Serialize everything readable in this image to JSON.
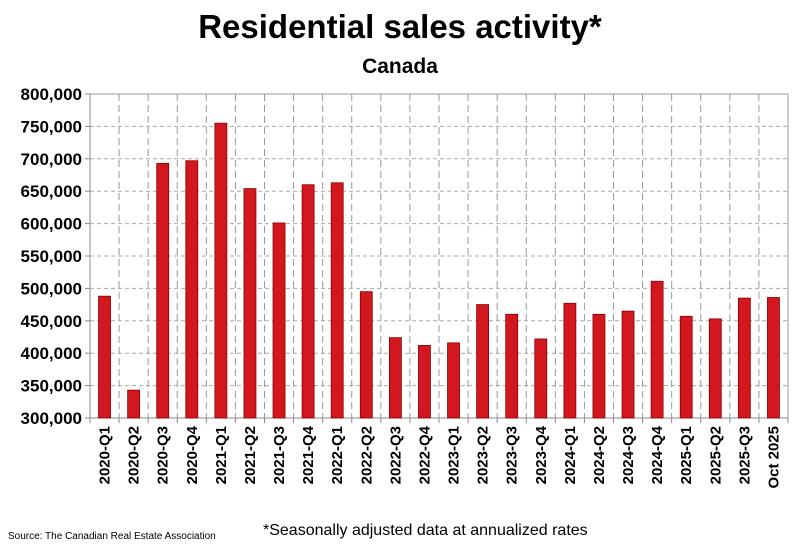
{
  "chart_data": {
    "type": "bar",
    "title": "Residential sales activity*",
    "subtitle": "Canada",
    "categories": [
      "2020-Q1",
      "2020-Q2",
      "2020-Q3",
      "2020-Q4",
      "2021-Q1",
      "2021-Q2",
      "2021-Q3",
      "2021-Q4",
      "2022-Q1",
      "2022-Q2",
      "2022-Q3",
      "2022-Q4",
      "2023-Q1",
      "2023-Q2",
      "2023-Q3",
      "2023-Q4",
      "2024-Q1",
      "2024-Q2",
      "2024-Q3",
      "2024-Q4",
      "2025-Q1",
      "2025-Q2",
      "2025-Q3",
      "Oct 2025"
    ],
    "values": [
      488000,
      343000,
      693000,
      697000,
      755000,
      654000,
      601000,
      660000,
      663000,
      495000,
      424000,
      412000,
      416000,
      475000,
      460000,
      422000,
      477000,
      460000,
      465000,
      511000,
      457000,
      453000,
      485000,
      486000
    ],
    "ylim": [
      300000,
      800000
    ],
    "yticks": [
      "300,000",
      "350,000",
      "400,000",
      "450,000",
      "500,000",
      "550,000",
      "600,000",
      "650,000",
      "700,000",
      "750,000",
      "800,000"
    ],
    "ytick_values": [
      300000,
      350000,
      400000,
      450000,
      500000,
      550000,
      600000,
      650000,
      700000,
      750000,
      800000
    ],
    "grid": true,
    "bar_color": "#d2171e",
    "bar_edge_color": "#8b0000",
    "xlabel": "",
    "ylabel": ""
  },
  "footer": {
    "source": "Source: The Canadian Real Estate Association",
    "note": "*Seasonally adjusted data at annualized rates"
  }
}
